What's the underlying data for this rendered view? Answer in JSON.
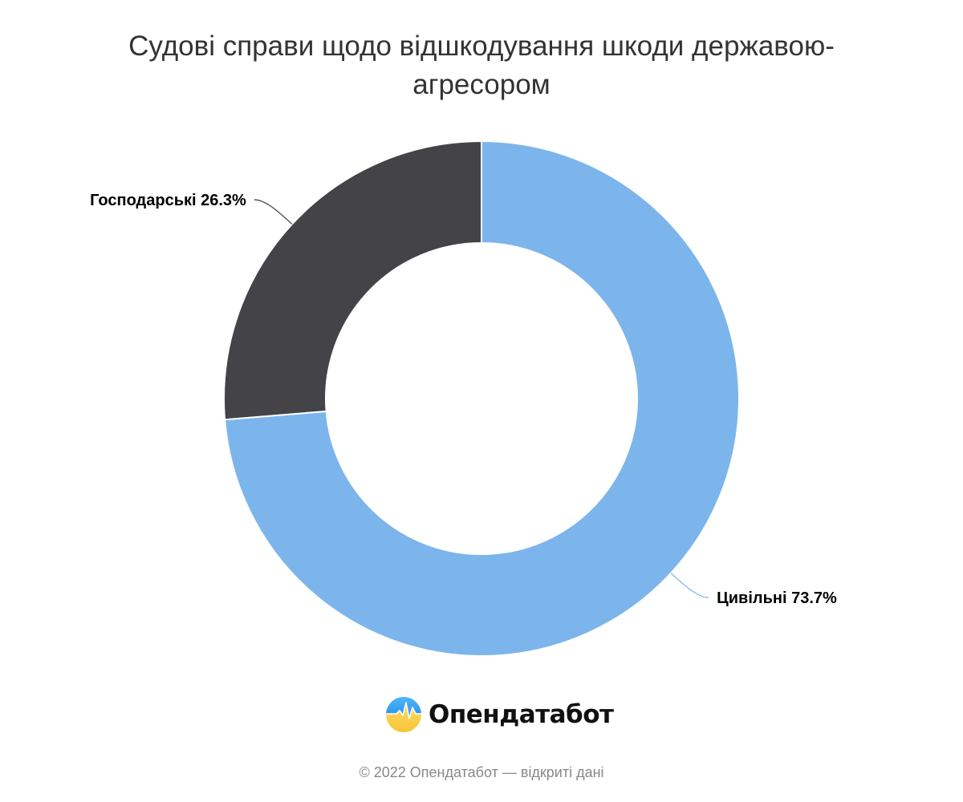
{
  "chart_data": {
    "type": "pie",
    "title": "Судові справи щодо відшкодування шкоди державою-агресором",
    "slices": [
      {
        "name": "Цивільні",
        "value": 73.7,
        "label": "Цивільні 73.7%",
        "color": "#7cb5ec"
      },
      {
        "name": "Господарські",
        "value": 26.3,
        "label": "Господарські 26.3%",
        "color": "#434348"
      }
    ],
    "donut": true,
    "start_angle_deg": 0,
    "legend": "none"
  },
  "branding": {
    "logo_text": "Опендатабот",
    "logo_icon": "opendatabot-logo-icon",
    "footer": "© 2022 Опендатабот — відкриті дані"
  }
}
